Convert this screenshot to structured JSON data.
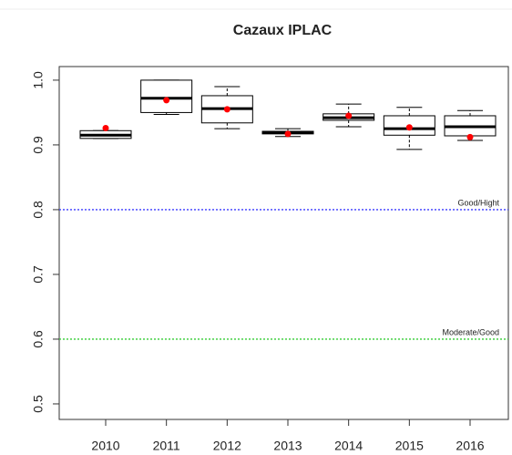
{
  "chart_data": {
    "type": "box",
    "title": "Cazaux IPLAC",
    "categories": [
      "2010",
      "2011",
      "2012",
      "2013",
      "2014",
      "2015",
      "2016"
    ],
    "whisker_low": [
      0.91,
      0.947,
      0.925,
      0.913,
      0.928,
      0.893,
      0.907
    ],
    "q1": [
      0.91,
      0.95,
      0.934,
      0.917,
      0.938,
      0.915,
      0.914
    ],
    "median": [
      0.915,
      0.972,
      0.956,
      0.919,
      0.942,
      0.925,
      0.928
    ],
    "q3": [
      0.922,
      1.0,
      0.976,
      0.921,
      0.948,
      0.945,
      0.945
    ],
    "whisker_high": [
      0.922,
      1.0,
      0.99,
      0.925,
      0.963,
      0.958,
      0.953
    ],
    "mean": [
      0.926,
      0.969,
      0.955,
      0.917,
      0.945,
      0.927,
      0.912
    ],
    "mean_color": "#ff0000",
    "reference_lines": [
      {
        "value": 0.8,
        "label": "Good/Hight",
        "color": "#3a3aff"
      },
      {
        "value": 0.6,
        "label": "Moderate/Good",
        "color": "#33cc33"
      }
    ],
    "ylim": [
      0.476,
      1.021
    ],
    "yticks": [
      0.5,
      0.6,
      0.7,
      0.8,
      0.9,
      {
        "value": 1,
        "label": "1.0"
      }
    ]
  }
}
